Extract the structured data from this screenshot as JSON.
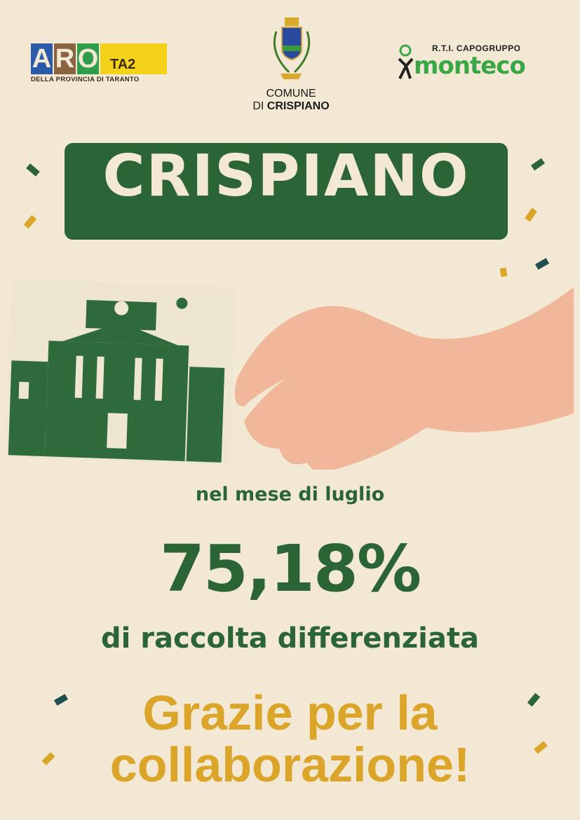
{
  "logos": {
    "aro": {
      "letters": [
        "A",
        "R",
        "O"
      ],
      "suffix": "TA2",
      "subtitle": "DELLA PROVINCIA DI TARANTO",
      "colors": [
        "#2b5aa8",
        "#8a6440",
        "#2f9d49",
        "#f4d21a"
      ]
    },
    "comune": {
      "line1": "COMUNE",
      "line2_prefix": "DI ",
      "line2_bold": "CRISPIANO"
    },
    "monteco": {
      "tagline": "R.T.I. CAPOGRUPPO",
      "name": "monteco"
    }
  },
  "title": "CRISPIANO",
  "month_text": "nel mese di luglio",
  "percentage": "75,18%",
  "description": "di raccolta differenziata",
  "thanks_line1": "Grazie per la",
  "thanks_line2": "collaborazione!",
  "colors": {
    "background": "#f3e8d4",
    "green": "#2b6536",
    "gold": "#dba52a",
    "teal": "#1f4f50"
  }
}
